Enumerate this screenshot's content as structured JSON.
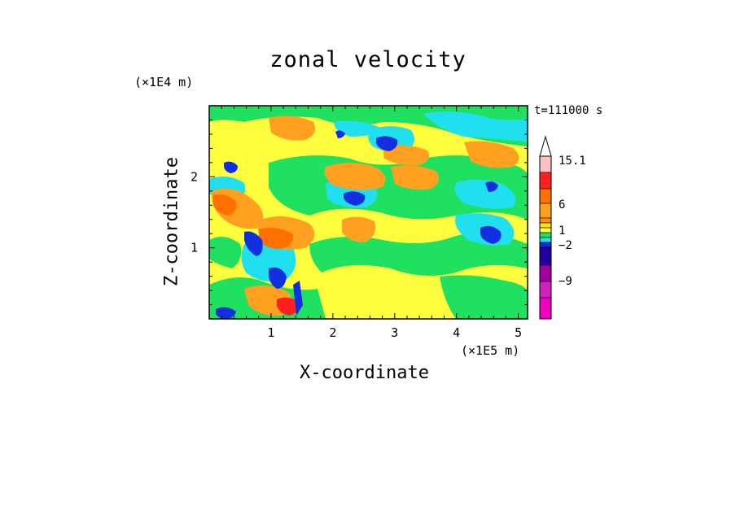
{
  "chart_data": {
    "type": "heatmap",
    "title": "zonal velocity",
    "xlabel": "X-coordinate",
    "ylabel": "Z-coordinate",
    "x_unit": "(×1E5 m)",
    "y_unit": "(×1E4 m)",
    "time_label": "t=111000 s",
    "xlim": [
      0,
      5.15
    ],
    "ylim": [
      0,
      3.0
    ],
    "x_ticks": [
      1,
      2,
      3,
      4,
      5
    ],
    "y_ticks": [
      1,
      2
    ],
    "colorbar": {
      "labels": [
        "15.1",
        "6",
        "1",
        "−2",
        "−9"
      ],
      "colors": [
        "#ffffff",
        "#ffc0c0",
        "#ff2020",
        "#ff7000",
        "#ffa020",
        "#ffff40",
        "#20e060",
        "#20e0f0",
        "#1030e0",
        "#2000a0",
        "#a000a0",
        "#d020c0",
        "#f000c0"
      ]
    }
  }
}
